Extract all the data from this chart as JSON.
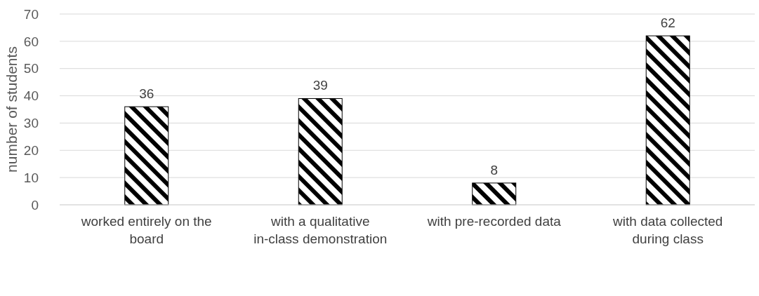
{
  "chart_data": {
    "type": "bar",
    "ylabel": "number of students",
    "categories": [
      "worked entirely on the board",
      "with a qualitative in-class demonstration",
      "with pre-recorded data",
      "with data collected during class"
    ],
    "values": [
      36,
      39,
      8,
      62
    ],
    "color": "#000000",
    "ylim": [
      0,
      70
    ],
    "yticks": [
      0,
      10,
      20,
      30,
      40,
      50,
      60,
      70
    ],
    "grid": "y",
    "data_labels": true
  }
}
